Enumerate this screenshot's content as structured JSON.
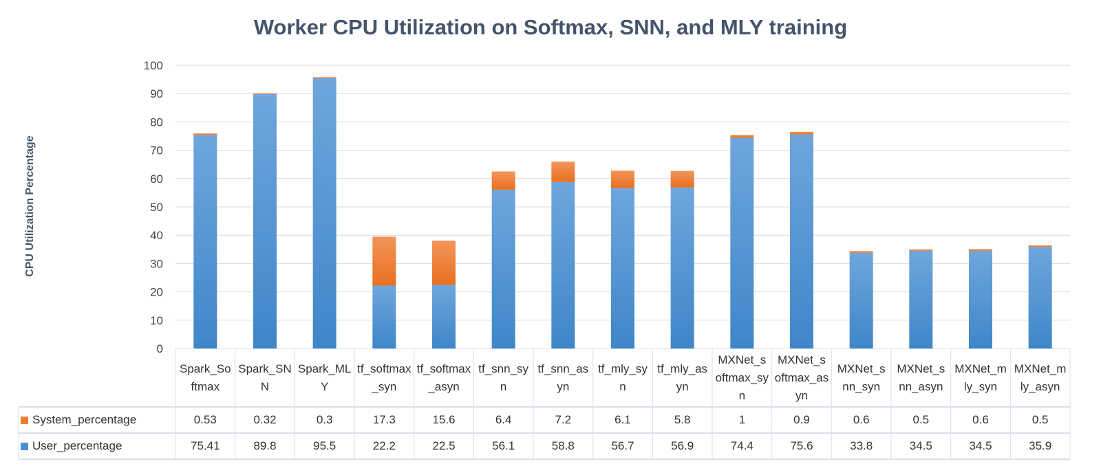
{
  "chart_data": {
    "type": "bar",
    "stacked": true,
    "title": "Worker CPU Utilization on Softmax, SNN, and MLY training",
    "ylabel": "CPU Utilization Percentage",
    "xlabel": "",
    "ylim": [
      0,
      100
    ],
    "yticks": [
      0,
      10,
      20,
      30,
      40,
      50,
      60,
      70,
      80,
      90,
      100
    ],
    "grid": true,
    "legend": "data-table",
    "categories": [
      "Spark_Softmax",
      "Spark_SNN",
      "Spark_MLY",
      "tf_softmax_syn",
      "tf_softmax_asyn",
      "tf_snn_syn",
      "tf_snn_asyn",
      "tf_mly_syn",
      "tf_mly_asyn",
      "MXNet_softmax_syn",
      "MXNet_softmax_asyn",
      "MXNet_snn_syn",
      "MXNet_snn_asyn",
      "MXNet_mly_syn",
      "MXNet_mly_asyn"
    ],
    "series": [
      {
        "name": "User_percentage",
        "color": "#4a90d4",
        "values": [
          75.41,
          89.8,
          95.5,
          22.2,
          22.5,
          56.1,
          58.8,
          56.7,
          56.9,
          74.4,
          75.6,
          33.8,
          34.5,
          34.5,
          35.9
        ]
      },
      {
        "name": "System_percentage",
        "color": "#ed7d31",
        "values": [
          0.53,
          0.32,
          0.3,
          17.3,
          15.6,
          6.4,
          7.2,
          6.1,
          5.8,
          1,
          0.9,
          0.6,
          0.5,
          0.6,
          0.5
        ]
      }
    ],
    "table_rows": [
      {
        "name": "System_percentage",
        "labels": [
          "0.53",
          "0.32",
          "0.3",
          "17.3",
          "15.6",
          "6.4",
          "7.2",
          "6.1",
          "5.8",
          "1",
          "0.9",
          "0.6",
          "0.5",
          "0.6",
          "0.5"
        ]
      },
      {
        "name": "User_percentage",
        "labels": [
          "75.41",
          "89.8",
          "95.5",
          "22.2",
          "22.5",
          "56.1",
          "58.8",
          "56.7",
          "56.9",
          "74.4",
          "75.6",
          "33.8",
          "34.5",
          "34.5",
          "35.9"
        ]
      }
    ]
  }
}
